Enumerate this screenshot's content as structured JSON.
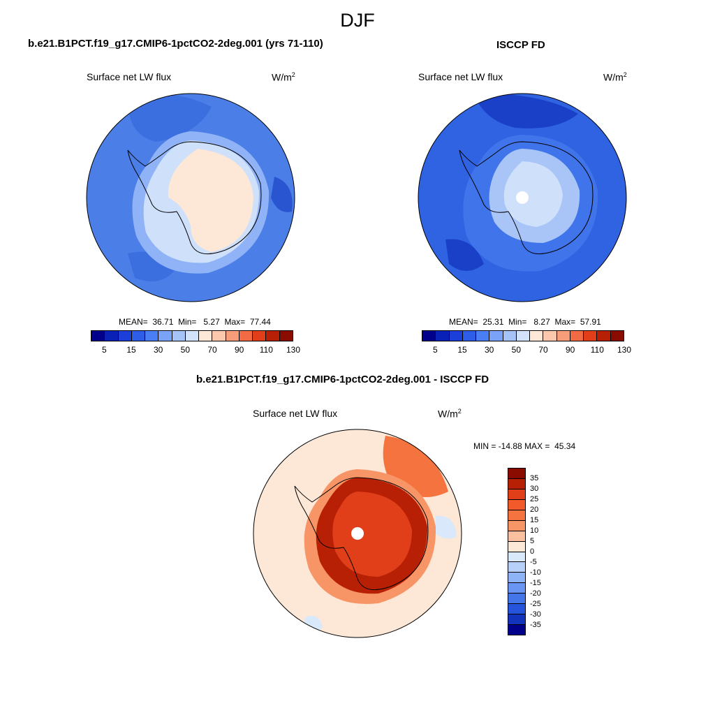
{
  "page": {
    "season": "DJF"
  },
  "panel_model": {
    "title": "b.e21.B1PCT.f19_g17.CMIP6-1pctCO2-2deg.001 (yrs 71-110)",
    "variable": "Surface net LW flux",
    "units_base": "W/m",
    "units_exp": "2",
    "mean_label": "MEAN=",
    "mean": "36.71",
    "min_label": "Min=",
    "min": "5.27",
    "max_label": "Max=",
    "max": "77.44"
  },
  "panel_obs": {
    "title": "ISCCP FD",
    "variable": "Surface net LW flux",
    "units_base": "W/m",
    "units_exp": "2",
    "mean_label": "MEAN=",
    "mean": "25.31",
    "min_label": "Min=",
    "min": "8.27",
    "max_label": "Max=",
    "max": "57.91"
  },
  "panel_diff": {
    "title": "b.e21.B1PCT.f19_g17.CMIP6-1pctCO2-2deg.001 - ISCCP FD",
    "variable": "Surface net LW flux",
    "units_base": "W/m",
    "units_exp": "2",
    "min_label": "MIN =",
    "min": "-14.88",
    "max_label": "MAX =",
    "max": "45.34"
  },
  "colorbar_main": {
    "tick_labels": [
      "5",
      "15",
      "30",
      "50",
      "70",
      "90",
      "110",
      "130"
    ],
    "colors": [
      "#00008b",
      "#0a21b8",
      "#1b3fd8",
      "#2e5ee8",
      "#4a7ef4",
      "#7aa2f7",
      "#a6c3f8",
      "#d2e2fb",
      "#fde7d6",
      "#fbc8ad",
      "#f89d7a",
      "#f26b44",
      "#e03f1a",
      "#b82005",
      "#8a0c00"
    ]
  },
  "colorbar_diff": {
    "labels": [
      "35",
      "30",
      "25",
      "20",
      "15",
      "10",
      "5",
      "0",
      "-5",
      "-10",
      "-15",
      "-20",
      "-25",
      "-30",
      "-35"
    ],
    "colors": [
      "#8a0c00",
      "#b82005",
      "#e03f1a",
      "#f25a2c",
      "#f5733f",
      "#f89566",
      "#fbc0a0",
      "#fde7d6",
      "#d9e8fb",
      "#b6d0f9",
      "#8eb3f6",
      "#6a95f2",
      "#4476ea",
      "#2655db",
      "#1433bc",
      "#00008b"
    ]
  },
  "maps": {
    "model": {
      "ocean": "#4b7ee6",
      "ring": "#8fb3f6",
      "coast": "#cfe0fb",
      "ice": "#fde7d6"
    },
    "obs": {
      "ocean": "#2f63e2",
      "ring": "#3f74ea",
      "coast": "#a9c5f8",
      "ice": "#cfe0fb"
    },
    "diff": {
      "ocean": "#fde7d6",
      "warm": "#f5733f",
      "ring": "#f89566",
      "hot": "#b82005",
      "ice": "#e03f1a"
    }
  }
}
